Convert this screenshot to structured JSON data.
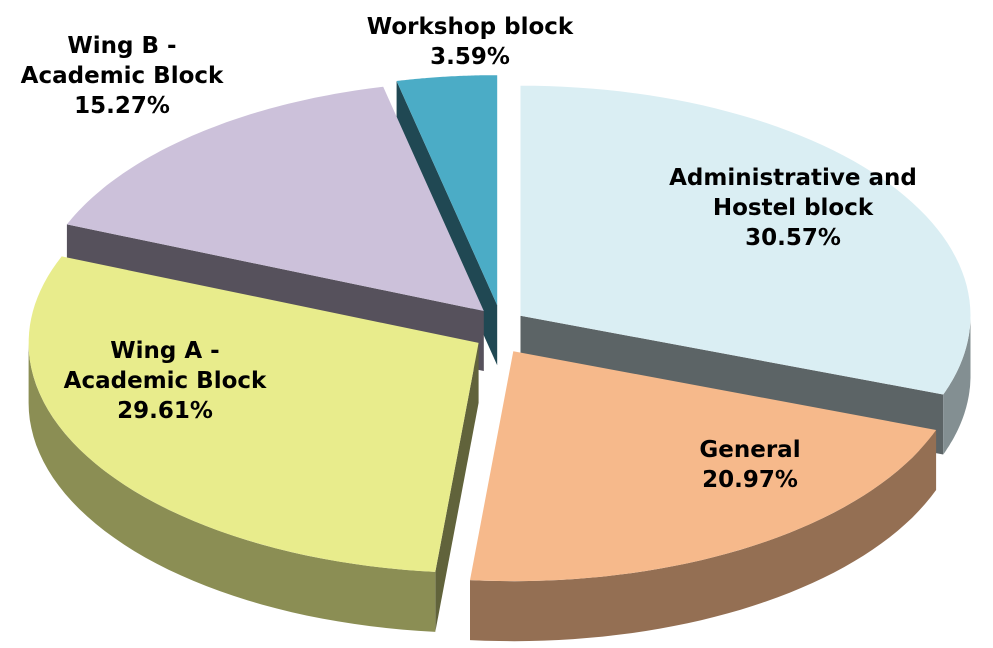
{
  "chart_data": {
    "type": "pie",
    "categories": [
      "Administrative and Hostel block",
      "General",
      "Wing A - Academic Block",
      "Wing B - Academic Block",
      "Workshop block"
    ],
    "values": [
      30.57,
      20.97,
      29.61,
      15.27,
      3.59
    ],
    "value_labels": [
      "30.57%",
      "20.97%",
      "29.61%",
      "15.27%",
      "3.59%"
    ],
    "colors": [
      "#daeef3",
      "#f6b98b",
      "#e8ec8c",
      "#ccc1da",
      "#4bacc6"
    ]
  }
}
